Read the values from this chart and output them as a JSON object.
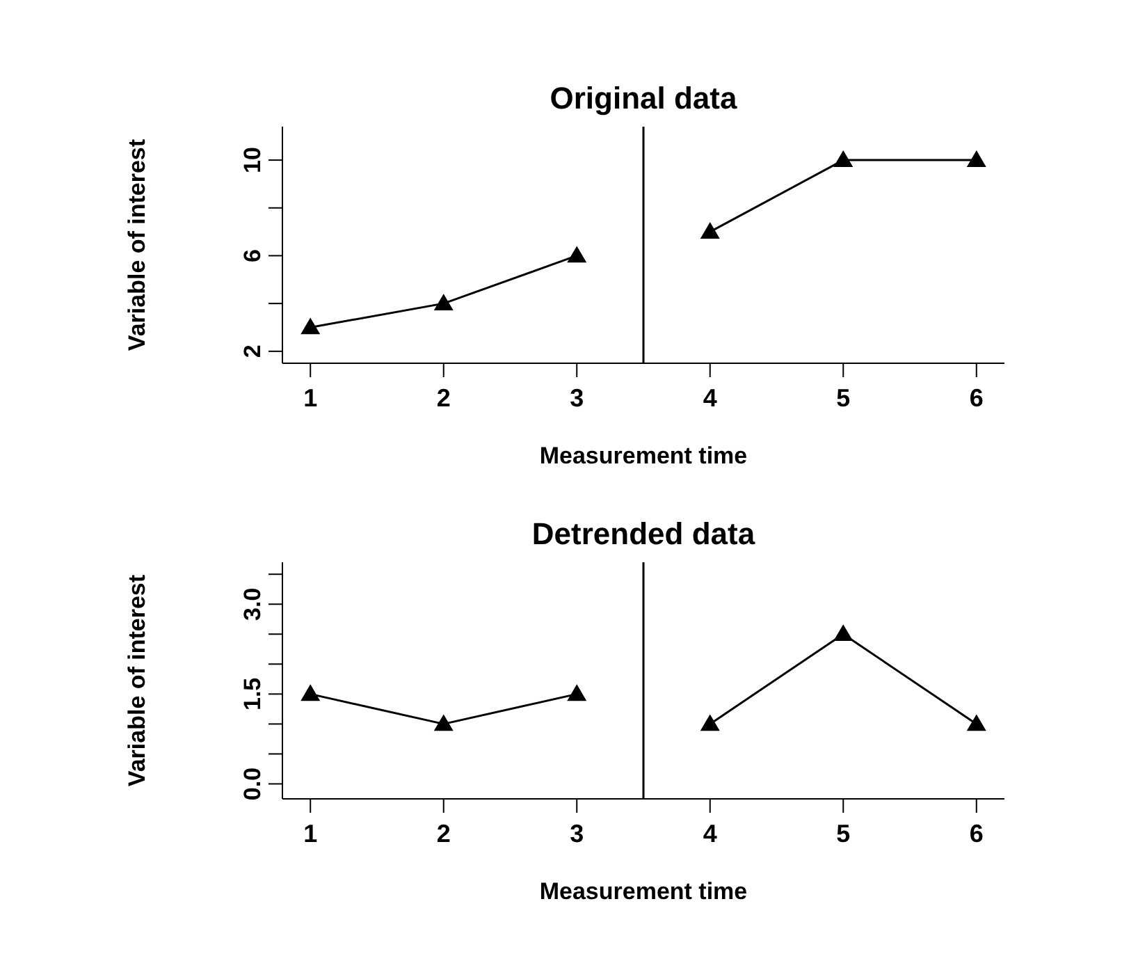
{
  "chart_data": [
    {
      "type": "line",
      "title": "Original data",
      "xlabel": "Measurement time",
      "ylabel": "Variable of interest",
      "xlim": [
        0.79,
        6.21
      ],
      "xticks": [
        1,
        2,
        3,
        4,
        5,
        6
      ],
      "ylim": [
        1.5,
        11.4
      ],
      "yticks": [
        2,
        {
          "value": 4,
          "label": null
        },
        6,
        {
          "value": 8,
          "label": null
        },
        10
      ],
      "marker": "triangle",
      "line_style": "solid",
      "grid": false,
      "legend": false,
      "series": [
        {
          "color": "#000000",
          "x": [
            1,
            2,
            3
          ],
          "values": [
            3,
            4,
            6
          ]
        },
        {
          "color": "#000000",
          "x": [
            4,
            5,
            6
          ],
          "values": [
            7,
            10,
            10
          ]
        }
      ],
      "ref_lines": [
        {
          "axis": "x",
          "value": 3.5,
          "color": "#000000",
          "line_style": "solid"
        }
      ]
    },
    {
      "type": "line",
      "title": "Detrended data",
      "xlabel": "Measurement time",
      "ylabel": "Variable of interest",
      "xlim": [
        0.79,
        6.21
      ],
      "xticks": [
        1,
        2,
        3,
        4,
        5,
        6
      ],
      "ylim": [
        -0.25,
        3.7
      ],
      "yticks": [
        {
          "value": 0,
          "label": "0.0"
        },
        {
          "value": 0.5,
          "label": null
        },
        {
          "value": 1,
          "label": null
        },
        {
          "value": 1.5,
          "label": "1.5"
        },
        {
          "value": 2,
          "label": null
        },
        {
          "value": 2.5,
          "label": null
        },
        {
          "value": 3,
          "label": "3.0"
        },
        {
          "value": 3.5,
          "label": null
        }
      ],
      "marker": "triangle",
      "line_style": "solid",
      "grid": false,
      "legend": false,
      "series": [
        {
          "color": "#000000",
          "x": [
            1,
            2,
            3
          ],
          "values": [
            1.5,
            1,
            1.5
          ]
        },
        {
          "color": "#000000",
          "x": [
            4,
            5,
            6
          ],
          "values": [
            1,
            2.5,
            1
          ]
        }
      ],
      "ref_lines": [
        {
          "axis": "x",
          "value": 3.5,
          "color": "#000000",
          "line_style": "solid"
        }
      ]
    }
  ]
}
